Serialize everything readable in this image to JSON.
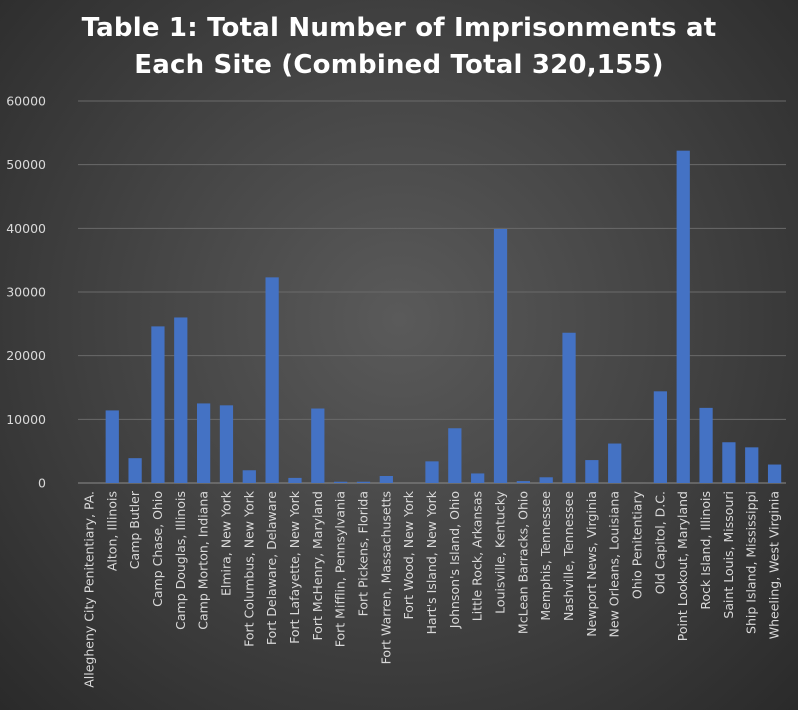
{
  "chart_data": {
    "type": "bar",
    "title": "Table 1: Total Number of Imprisonments at Each Site (Combined Total 320,155)",
    "title_lines": [
      "Table 1: Total Number of Imprisonments at",
      "Each Site (Combined Total 320,155)"
    ],
    "xlabel": "",
    "ylabel": "",
    "ylim": [
      0,
      60000
    ],
    "yticks": [
      "0",
      "10000",
      "20000",
      "30000",
      "40000",
      "50000",
      "60000"
    ],
    "grid": true,
    "legend": "none",
    "bar_color": "#4472c4",
    "categories": [
      "Allegheny City Penitentiary, PA.",
      "Alton, Illinois",
      "Camp Butler",
      "Camp Chase, Ohio",
      "Camp Douglas, Illinois",
      "Camp Morton, Indiana",
      "Elmira, New York",
      "Fort Columbus, New York",
      "Fort Delaware, Delaware",
      "Fort Lafayette, New York",
      "Fort McHenry, Maryland",
      "Fort Mifflin, Pennsylvania",
      "Fort Pickens, Florida",
      "Fort Warren, Massachusetts",
      "Fort Wood, New York",
      "Hart's Island, New York",
      "Johnson's Island, Ohio",
      "Little Rock, Arkansas",
      "Louisville, Kentucky",
      "McLean Barracks, Ohio",
      "Memphis, Tennessee",
      "Nashville, Tennessee",
      "Newport News, Virginia",
      "New Orleans, Louisiana",
      "Ohio Penitentiary",
      "Old Capitol, D.C.",
      "Point Lookout, Maryland",
      "Rock Island, Illinois",
      "Saint Louis, Missouri",
      "Ship Island, Mississippi",
      "Wheeling, West Virginia"
    ],
    "values": [
      0,
      11400,
      3900,
      24600,
      26000,
      12500,
      12200,
      2000,
      32300,
      800,
      11700,
      200,
      200,
      1100,
      0,
      3400,
      8600,
      1500,
      39900,
      300,
      900,
      23600,
      3600,
      6200,
      0,
      14400,
      52200,
      11800,
      6400,
      5600,
      2900
    ]
  }
}
